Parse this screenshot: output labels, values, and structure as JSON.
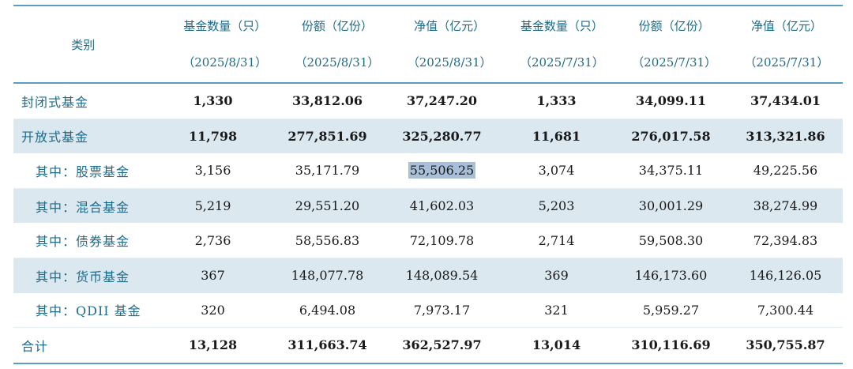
{
  "header": {
    "category": "类别",
    "columns": [
      {
        "label": "基金数量（只）",
        "date": "（2025/8/31）"
      },
      {
        "label": "份额（亿份）",
        "date": "（2025/8/31）"
      },
      {
        "label": "净值（亿元）",
        "date": "（2025/8/31）"
      },
      {
        "label": "基金数量（只）",
        "date": "（2025/7/31）"
      },
      {
        "label": "份额（亿份）",
        "date": "（2025/7/31）"
      },
      {
        "label": "净值（亿元）",
        "date": "（2025/7/31）"
      }
    ]
  },
  "rows": [
    {
      "category": "封闭式基金",
      "values": [
        "1,330",
        "33,812.06",
        "37,247.20",
        "1,333",
        "34,099.11",
        "37,434.01"
      ]
    },
    {
      "category": "开放式基金",
      "values": [
        "11,798",
        "277,851.69",
        "325,280.77",
        "11,681",
        "276,017.58",
        "313,321.86"
      ]
    },
    {
      "category": "其中：股票基金",
      "values": [
        "3,156",
        "35,171.79",
        "55,506.25",
        "3,074",
        "34,375.11",
        "49,225.56"
      ]
    },
    {
      "category": "其中：混合基金",
      "values": [
        "5,219",
        "29,551.20",
        "41,602.03",
        "5,203",
        "30,001.29",
        "38,274.99"
      ]
    },
    {
      "category": "其中：债券基金",
      "values": [
        "2,736",
        "58,556.83",
        "72,109.78",
        "2,714",
        "59,508.30",
        "72,394.83"
      ]
    },
    {
      "category": "其中：货币基金",
      "values": [
        "367",
        "148,077.78",
        "148,089.54",
        "369",
        "146,173.60",
        "146,126.05"
      ]
    },
    {
      "category": "其中：QDII 基金",
      "values": [
        "320",
        "6,494.08",
        "7,973.17",
        "321",
        "5,959.27",
        "7,300.44"
      ]
    },
    {
      "category": "合计",
      "values": [
        "13,128",
        "311,663.74",
        "362,527.97",
        "13,014",
        "310,116.69",
        "350,755.87"
      ]
    }
  ],
  "colors": {
    "accent_text": "#1b6b8a",
    "rule": "#5aa0bd",
    "shaded_row": "#dbe8f0",
    "selection": "#a7bfd9"
  }
}
